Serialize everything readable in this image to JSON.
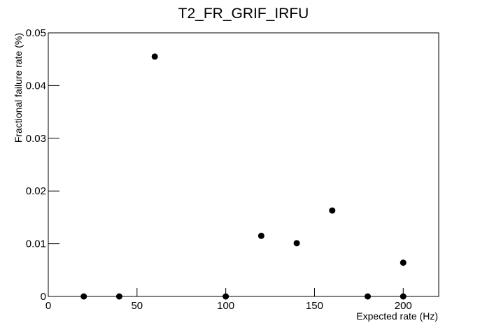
{
  "chart_data": {
    "type": "scatter",
    "title": "T2_FR_GRIF_IRFU",
    "x_label": "Expected rate (Hz)",
    "y_label": "Fractional failure rate (%)",
    "x": [
      20,
      40,
      60,
      100,
      120,
      140,
      160,
      180,
      200,
      200
    ],
    "values": [
      0,
      0,
      0.0455,
      0,
      0.0115,
      0.0101,
      0.0163,
      0,
      0.0064,
      0
    ],
    "color": "#000000",
    "xlim": [
      0,
      220
    ],
    "xticks": [
      0,
      50,
      100,
      150,
      200
    ],
    "ylim": [
      0,
      0.05
    ],
    "yticks": [
      0,
      0.01,
      0.02,
      0.03,
      0.04,
      0.05
    ],
    "grid": false
  }
}
